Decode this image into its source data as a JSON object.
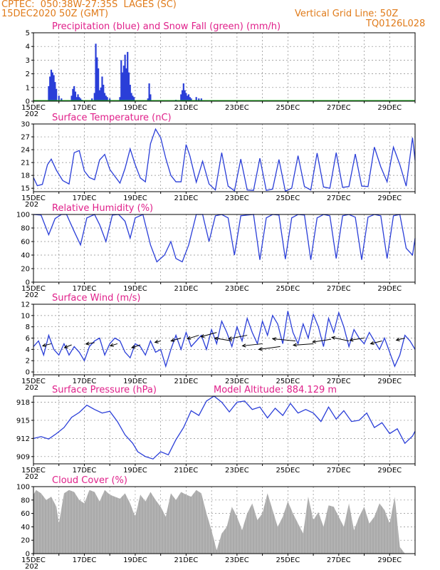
{
  "header": {
    "station": "CPTEC:  050:38W-27:35S  LAGES (SC)",
    "init": "15DEC2020 50Z (GMT)",
    "grid_note": "Vertical Grid Line: 50Z",
    "run_id": "TQ0126L028"
  },
  "colors": {
    "header": "#e07b1a",
    "title": "#e0208a",
    "line": "#2a3ed8",
    "snow": "#1aa81a",
    "cloud": "#aaaaaa",
    "wind_arrow": "#000000"
  },
  "x_axis": {
    "start_day": 15,
    "end_day": 30,
    "tick_labels": [
      "15DEC",
      "17DEC",
      "19DEC",
      "21DEC",
      "23DEC",
      "25DEC",
      "27DEC",
      "29DEC"
    ],
    "year_label": "202"
  },
  "chart_data": [
    {
      "id": "precip",
      "type": "bar",
      "title": "Precipitation (blue) and Snow Fall (green) (mm/h)",
      "ylim": [
        0,
        5
      ],
      "yticks": [
        "0",
        "1",
        "2",
        "3",
        "4",
        "5"
      ],
      "series": [
        {
          "name": "Precipitation",
          "x": [
            15.6,
            15.65,
            15.7,
            15.75,
            15.8,
            15.85,
            15.9,
            16.0,
            16.1,
            16.5,
            16.55,
            16.6,
            16.65,
            16.7,
            16.75,
            16.8,
            16.85,
            16.9,
            17.3,
            17.4,
            17.45,
            17.5,
            17.55,
            17.6,
            17.65,
            17.7,
            17.75,
            17.8,
            17.85,
            17.9,
            18.0,
            18.4,
            18.45,
            18.5,
            18.55,
            18.6,
            18.65,
            18.7,
            18.75,
            18.8,
            18.85,
            18.9,
            18.95,
            19.5,
            19.55,
            19.6,
            20.6,
            20.8,
            20.85,
            20.9,
            20.95,
            21.0,
            21.05,
            21.1,
            21.15,
            21.2,
            21.4,
            21.5,
            21.6
          ],
          "values": [
            1.1,
            1.8,
            2.3,
            2.1,
            1.9,
            1.4,
            0.9,
            0.4,
            0.2,
            0.4,
            0.9,
            1.1,
            0.7,
            0.3,
            0.5,
            0.3,
            0.2,
            0.1,
            0.2,
            0.6,
            4.2,
            3.2,
            2.4,
            0.8,
            1.0,
            1.8,
            1.2,
            0.6,
            0.4,
            0.3,
            0.2,
            0.3,
            3.0,
            2.1,
            2.6,
            3.4,
            2.4,
            3.6,
            2.1,
            1.2,
            0.6,
            0.4,
            0.3,
            0.2,
            1.3,
            0.5,
            0.1,
            0.5,
            0.8,
            1.3,
            0.8,
            0.6,
            0.4,
            0.5,
            0.3,
            0.2,
            0.3,
            0.2,
            0.2
          ]
        },
        {
          "name": "Snow Fall",
          "x": [],
          "values": []
        }
      ]
    },
    {
      "id": "temp",
      "type": "line",
      "title": "Surface Temperature (nC)",
      "ylim": [
        14.2,
        30
      ],
      "yticks": [
        "15",
        "18",
        "21",
        "24",
        "27",
        "30"
      ],
      "x": [
        15.0,
        15.15,
        15.35,
        15.55,
        15.7,
        15.9,
        16.15,
        16.4,
        16.6,
        16.8,
        17.0,
        17.2,
        17.4,
        17.6,
        17.8,
        18.0,
        18.2,
        18.4,
        18.6,
        18.8,
        19.0,
        19.2,
        19.4,
        19.6,
        19.8,
        20.0,
        20.2,
        20.4,
        20.6,
        20.8,
        21.0,
        21.15,
        21.4,
        21.65,
        21.9,
        22.15,
        22.4,
        22.65,
        22.9,
        23.15,
        23.4,
        23.65,
        23.9,
        24.15,
        24.4,
        24.65,
        24.9,
        25.15,
        25.4,
        25.65,
        25.9,
        26.15,
        26.4,
        26.65,
        26.9,
        27.15,
        27.4,
        27.65,
        27.9,
        28.15,
        28.4,
        28.65,
        28.9,
        29.15,
        29.4,
        29.65,
        29.9,
        30.0
      ],
      "values": [
        17.5,
        15.6,
        15.9,
        20.5,
        21.8,
        19.2,
        16.8,
        16.0,
        23.3,
        23.8,
        19.0,
        17.5,
        17.0,
        21.6,
        22.9,
        19.4,
        17.8,
        16.2,
        19.6,
        24.2,
        20.5,
        17.4,
        16.5,
        25.4,
        28.8,
        26.8,
        22.0,
        18.0,
        16.5,
        16.5,
        25.2,
        22.5,
        16.4,
        21.3,
        16.0,
        14.6,
        23.3,
        15.5,
        14.4,
        21.8,
        14.6,
        14.5,
        22.0,
        14.5,
        14.8,
        21.7,
        14.3,
        15.0,
        22.6,
        15.4,
        14.6,
        23.2,
        15.3,
        15.0,
        23.3,
        15.2,
        15.4,
        23.0,
        15.5,
        15.4,
        24.6,
        20.0,
        16.5,
        24.6,
        20.5,
        15.5,
        26.8,
        21.5
      ]
    },
    {
      "id": "rh",
      "type": "line",
      "title": "Relative Humidity (%)",
      "ylim": [
        0,
        100
      ],
      "yticks": [
        "0",
        "20",
        "40",
        "60",
        "80",
        "100"
      ],
      "x": [
        15.0,
        15.3,
        15.6,
        15.85,
        16.1,
        16.3,
        16.6,
        16.85,
        17.1,
        17.4,
        17.6,
        17.85,
        18.1,
        18.35,
        18.6,
        18.8,
        19.0,
        19.3,
        19.6,
        19.85,
        20.15,
        20.4,
        20.6,
        20.85,
        21.1,
        21.4,
        21.65,
        21.9,
        22.15,
        22.4,
        22.65,
        22.9,
        23.15,
        23.4,
        23.65,
        23.9,
        24.15,
        24.4,
        24.65,
        24.9,
        25.15,
        25.4,
        25.65,
        25.9,
        26.15,
        26.4,
        26.65,
        26.9,
        27.15,
        27.4,
        27.65,
        27.9,
        28.15,
        28.4,
        28.65,
        28.9,
        29.15,
        29.4,
        29.65,
        29.9,
        30.0
      ],
      "values": [
        100,
        99,
        70,
        94,
        100,
        100,
        75,
        55,
        95,
        100,
        85,
        60,
        99,
        100,
        90,
        65,
        95,
        100,
        55,
        30,
        40,
        60,
        35,
        30,
        55,
        100,
        100,
        60,
        98,
        100,
        95,
        40,
        98,
        99,
        100,
        33,
        95,
        100,
        99,
        34,
        95,
        100,
        99,
        33,
        95,
        100,
        98,
        35,
        98,
        100,
        96,
        33,
        96,
        100,
        98,
        35,
        98,
        100,
        50,
        40,
        65
      ]
    },
    {
      "id": "wind",
      "type": "line",
      "title": "Surface Wind (m/s)",
      "ylim": [
        -0.5,
        12
      ],
      "yticks": [
        "0",
        "2",
        "4",
        "6",
        "8",
        "10",
        "12"
      ],
      "x": [
        15.0,
        15.2,
        15.4,
        15.6,
        15.8,
        16.0,
        16.2,
        16.4,
        16.6,
        16.8,
        17.0,
        17.2,
        17.4,
        17.6,
        17.8,
        18.0,
        18.2,
        18.4,
        18.6,
        18.8,
        19.0,
        19.2,
        19.4,
        19.6,
        19.8,
        20.0,
        20.2,
        20.4,
        20.6,
        20.8,
        21.0,
        21.2,
        21.4,
        21.6,
        21.8,
        22.0,
        22.2,
        22.4,
        22.6,
        22.8,
        23.0,
        23.2,
        23.4,
        23.6,
        23.8,
        24.0,
        24.2,
        24.4,
        24.6,
        24.8,
        25.0,
        25.2,
        25.4,
        25.6,
        25.8,
        26.0,
        26.2,
        26.4,
        26.6,
        26.8,
        27.0,
        27.2,
        27.4,
        27.6,
        27.8,
        28.0,
        28.2,
        28.4,
        28.6,
        28.8,
        29.0,
        29.2,
        29.4,
        29.6,
        29.8,
        30.0
      ],
      "values": [
        4.5,
        5.5,
        3.0,
        6.5,
        4.0,
        3.0,
        5.0,
        3.0,
        4.5,
        3.5,
        2.0,
        4.5,
        5.5,
        6.0,
        3.0,
        5.0,
        6.0,
        5.5,
        3.5,
        2.5,
        5.0,
        4.5,
        3.0,
        5.5,
        3.5,
        4.0,
        1.0,
        4.0,
        6.5,
        4.0,
        7.0,
        4.5,
        5.5,
        6.5,
        4.0,
        7.5,
        5.0,
        9.0,
        7.0,
        4.5,
        8.0,
        5.5,
        9.5,
        7.0,
        5.0,
        9.0,
        6.5,
        10.0,
        8.5,
        5.0,
        10.8,
        7.0,
        5.0,
        8.5,
        6.0,
        10.2,
        8.0,
        4.5,
        9.5,
        7.0,
        10.5,
        8.0,
        4.5,
        7.5,
        6.0,
        5.0,
        7.0,
        5.5,
        4.0,
        6.0,
        3.5,
        1.0,
        3.0,
        6.5,
        5.5,
        4.0
      ],
      "arrows": [
        {
          "x": 15.7,
          "y": 5.0,
          "dx": -12,
          "dy": 3
        },
        {
          "x": 16.5,
          "y": 4.8,
          "dx": -10,
          "dy": 4
        },
        {
          "x": 17.4,
          "y": 5.2,
          "dx": -12,
          "dy": 2
        },
        {
          "x": 18.3,
          "y": 5.0,
          "dx": -10,
          "dy": 3
        },
        {
          "x": 19.2,
          "y": 4.8,
          "dx": -12,
          "dy": 4
        },
        {
          "x": 20.0,
          "y": 5.5,
          "dx": -8,
          "dy": 2
        },
        {
          "x": 20.8,
          "y": 6.0,
          "dx": -14,
          "dy": 4
        },
        {
          "x": 21.5,
          "y": 6.5,
          "dx": -16,
          "dy": 5
        },
        {
          "x": 22.2,
          "y": 7.0,
          "dx": -22,
          "dy": 6
        },
        {
          "x": 22.8,
          "y": 5.5,
          "dx": -24,
          "dy": -4
        },
        {
          "x": 23.4,
          "y": 6.5,
          "dx": -26,
          "dy": 5
        },
        {
          "x": 24.0,
          "y": 5.0,
          "dx": -28,
          "dy": 3
        },
        {
          "x": 24.7,
          "y": 4.5,
          "dx": -30,
          "dy": 4
        },
        {
          "x": 25.3,
          "y": 5.5,
          "dx": -32,
          "dy": -3
        },
        {
          "x": 26.0,
          "y": 5.0,
          "dx": -28,
          "dy": 2
        },
        {
          "x": 26.7,
          "y": 5.8,
          "dx": -26,
          "dy": 4
        },
        {
          "x": 27.4,
          "y": 5.5,
          "dx": -24,
          "dy": -5
        },
        {
          "x": 28.0,
          "y": 6.0,
          "dx": -20,
          "dy": 3
        },
        {
          "x": 28.7,
          "y": 5.5,
          "dx": -16,
          "dy": 4
        },
        {
          "x": 29.6,
          "y": 6.0,
          "dx": -12,
          "dy": 3
        }
      ]
    },
    {
      "id": "pres",
      "type": "line",
      "title": "Surface Pressure (hPa)",
      "subtitle": "Model Altitude: 884.129  m",
      "ylim": [
        907.8,
        919
      ],
      "yticks": [
        "909",
        "912",
        "915",
        "918"
      ],
      "x": [
        15.0,
        15.3,
        15.6,
        15.9,
        16.2,
        16.5,
        16.8,
        17.1,
        17.4,
        17.7,
        18.0,
        18.3,
        18.6,
        18.9,
        19.1,
        19.4,
        19.7,
        20.0,
        20.3,
        20.6,
        20.9,
        21.2,
        21.5,
        21.8,
        22.1,
        22.4,
        22.7,
        23.0,
        23.3,
        23.6,
        23.9,
        24.2,
        24.5,
        24.8,
        25.1,
        25.4,
        25.7,
        26.0,
        26.3,
        26.6,
        26.9,
        27.2,
        27.5,
        27.8,
        28.1,
        28.4,
        28.7,
        29.0,
        29.3,
        29.6,
        29.9,
        30.0
      ],
      "values": [
        912.0,
        912.3,
        911.9,
        912.8,
        913.8,
        915.5,
        916.3,
        917.5,
        916.8,
        916.2,
        916.5,
        914.8,
        912.6,
        911.2,
        909.8,
        909.0,
        908.6,
        909.8,
        909.3,
        911.8,
        913.8,
        916.6,
        915.8,
        918.2,
        919.0,
        918.0,
        916.4,
        918.0,
        918.2,
        916.8,
        917.2,
        915.4,
        917.0,
        915.8,
        917.8,
        916.2,
        916.8,
        916.2,
        914.8,
        917.2,
        915.2,
        916.6,
        914.8,
        915.0,
        916.2,
        913.8,
        914.6,
        912.8,
        913.6,
        911.2,
        912.4,
        913.2
      ]
    },
    {
      "id": "cloud",
      "type": "area",
      "title": "Cloud Cover (%)",
      "ylim": [
        0,
        100
      ],
      "yticks": [
        "0",
        "20",
        "40",
        "60",
        "80",
        "100"
      ],
      "x": [
        15.0,
        15.1,
        15.3,
        15.5,
        15.7,
        15.9,
        16.0,
        16.2,
        16.4,
        16.6,
        16.8,
        17.0,
        17.2,
        17.4,
        17.6,
        17.8,
        18.0,
        18.2,
        18.4,
        18.6,
        18.8,
        19.0,
        19.2,
        19.4,
        19.6,
        19.8,
        20.0,
        20.2,
        20.4,
        20.6,
        20.8,
        21.0,
        21.2,
        21.4,
        21.6,
        21.8,
        22.0,
        22.2,
        22.4,
        22.6,
        22.8,
        23.0,
        23.2,
        23.4,
        23.6,
        23.8,
        24.0,
        24.2,
        24.4,
        24.6,
        24.8,
        25.0,
        25.2,
        25.4,
        25.6,
        25.8,
        26.0,
        26.2,
        26.4,
        26.6,
        26.8,
        27.0,
        27.2,
        27.4,
        27.6,
        27.8,
        28.0,
        28.2,
        28.4,
        28.6,
        28.8,
        29.0,
        29.2,
        29.4,
        29.6,
        29.8,
        30.0
      ],
      "values": [
        88,
        95,
        90,
        80,
        85,
        70,
        45,
        90,
        95,
        92,
        80,
        75,
        95,
        92,
        78,
        95,
        88,
        85,
        82,
        90,
        75,
        55,
        88,
        78,
        92,
        80,
        70,
        55,
        90,
        80,
        92,
        88,
        85,
        95,
        90,
        60,
        35,
        5,
        30,
        40,
        70,
        55,
        35,
        60,
        75,
        50,
        60,
        90,
        65,
        40,
        55,
        78,
        60,
        45,
        30,
        85,
        50,
        62,
        40,
        72,
        70,
        55,
        40,
        75,
        35,
        55,
        70,
        45,
        55,
        75,
        65,
        45,
        85,
        10,
        0,
        0,
        0
      ]
    }
  ]
}
